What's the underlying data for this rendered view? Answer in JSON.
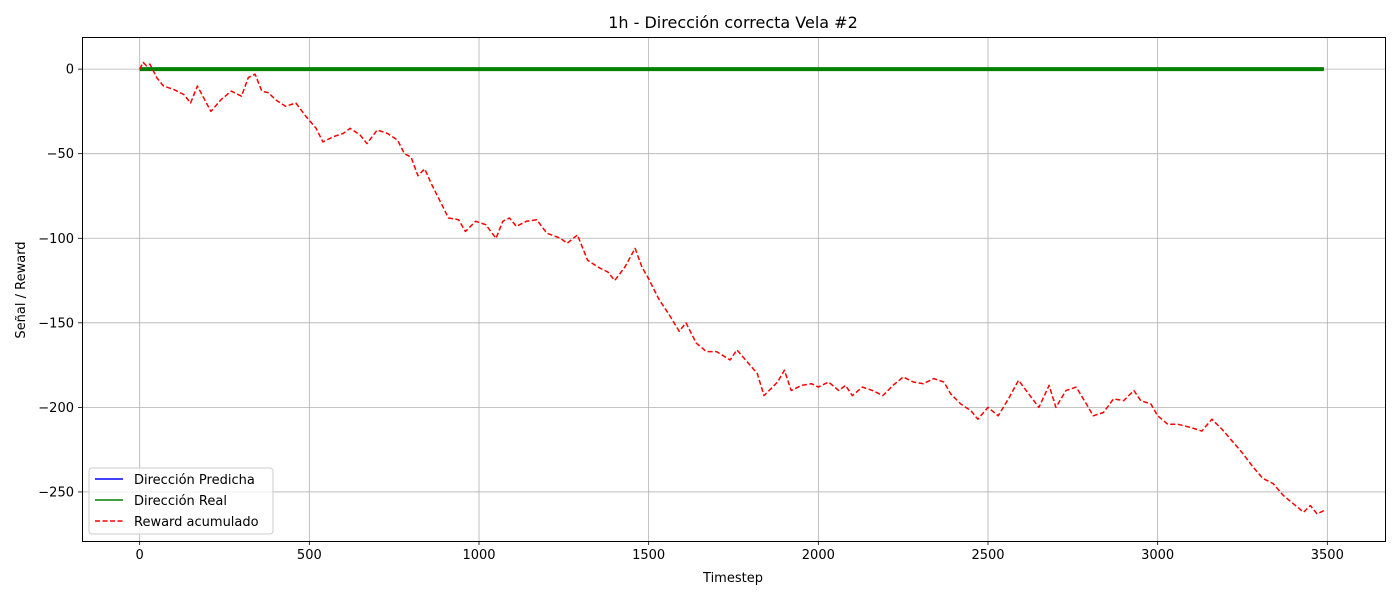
{
  "chart_data": {
    "type": "line",
    "title": "1h - Dirección correcta Vela #2",
    "xlabel": "Timestep",
    "ylabel": "Señal / Reward",
    "xlim": [
      -170,
      3670
    ],
    "ylim": [
      -279,
      19
    ],
    "xticks": [
      0,
      500,
      1000,
      1500,
      2000,
      2500,
      3000,
      3500
    ],
    "yticks": [
      0,
      -50,
      -100,
      -150,
      -200,
      -250
    ],
    "xtick_labels": [
      "0",
      "500",
      "1000",
      "1500",
      "2000",
      "2500",
      "3000",
      "3500"
    ],
    "ytick_labels": [
      "0",
      "−50",
      "−100",
      "−150",
      "−200",
      "−250"
    ],
    "grid": true,
    "legend_position": "lower-left",
    "series": [
      {
        "name": "Dirección Predicha",
        "style": "solid",
        "color": "#0000ff",
        "x": [
          0,
          3490
        ],
        "y": [
          0,
          0
        ]
      },
      {
        "name": "Dirección Real",
        "style": "solid",
        "color": "#008000",
        "x": [
          0,
          3490
        ],
        "y": [
          0,
          0
        ]
      },
      {
        "name": "Reward acumulado",
        "style": "dashed",
        "color": "#ff0000",
        "x": [
          0,
          10,
          20,
          30,
          50,
          70,
          100,
          130,
          150,
          170,
          210,
          240,
          270,
          300,
          320,
          340,
          360,
          380,
          400,
          430,
          460,
          490,
          520,
          540,
          570,
          600,
          620,
          650,
          670,
          700,
          730,
          760,
          780,
          800,
          820,
          840,
          860,
          890,
          910,
          940,
          960,
          990,
          1020,
          1050,
          1070,
          1090,
          1110,
          1140,
          1170,
          1200,
          1240,
          1260,
          1290,
          1320,
          1350,
          1380,
          1400,
          1430,
          1460,
          1480,
          1500,
          1530,
          1560,
          1590,
          1610,
          1640,
          1670,
          1700,
          1740,
          1760,
          1790,
          1820,
          1840,
          1860,
          1880,
          1900,
          1920,
          1950,
          1980,
          2000,
          2030,
          2060,
          2080,
          2100,
          2130,
          2160,
          2190,
          2220,
          2250,
          2280,
          2310,
          2340,
          2370,
          2390,
          2420,
          2450,
          2470,
          2500,
          2530,
          2560,
          2590,
          2620,
          2650,
          2680,
          2700,
          2730,
          2760,
          2790,
          2810,
          2840,
          2870,
          2900,
          2930,
          2950,
          2980,
          3000,
          3030,
          3060,
          3100,
          3130,
          3160,
          3190,
          3220,
          3250,
          3280,
          3310,
          3340,
          3370,
          3400,
          3430,
          3450,
          3470,
          3490
        ],
        "y": [
          0,
          4,
          2,
          3,
          -5,
          -10,
          -12,
          -15,
          -20,
          -10,
          -25,
          -18,
          -13,
          -16,
          -5,
          -3,
          -13,
          -14,
          -18,
          -22,
          -20,
          -28,
          -35,
          -43,
          -40,
          -38,
          -35,
          -39,
          -44,
          -36,
          -38,
          -42,
          -50,
          -52,
          -63,
          -59,
          -68,
          -80,
          -88,
          -89,
          -96,
          -90,
          -92,
          -100,
          -90,
          -88,
          -93,
          -90,
          -89,
          -97,
          -100,
          -103,
          -98,
          -113,
          -117,
          -120,
          -125,
          -117,
          -106,
          -117,
          -124,
          -136,
          -145,
          -155,
          -150,
          -162,
          -167,
          -167,
          -172,
          -166,
          -173,
          -180,
          -193,
          -189,
          -185,
          -178,
          -190,
          -187,
          -186,
          -188,
          -185,
          -190,
          -187,
          -193,
          -188,
          -190,
          -193,
          -187,
          -182,
          -185,
          -186,
          -183,
          -185,
          -192,
          -198,
          -202,
          -207,
          -200,
          -205,
          -195,
          -184,
          -192,
          -200,
          -187,
          -200,
          -190,
          -188,
          -198,
          -205,
          -203,
          -195,
          -196,
          -190,
          -196,
          -198,
          -205,
          -210,
          -210,
          -212,
          -214,
          -207,
          -213,
          -220,
          -227,
          -235,
          -242,
          -245,
          -252,
          -257,
          -262,
          -258,
          -263,
          -261
        ]
      }
    ]
  }
}
